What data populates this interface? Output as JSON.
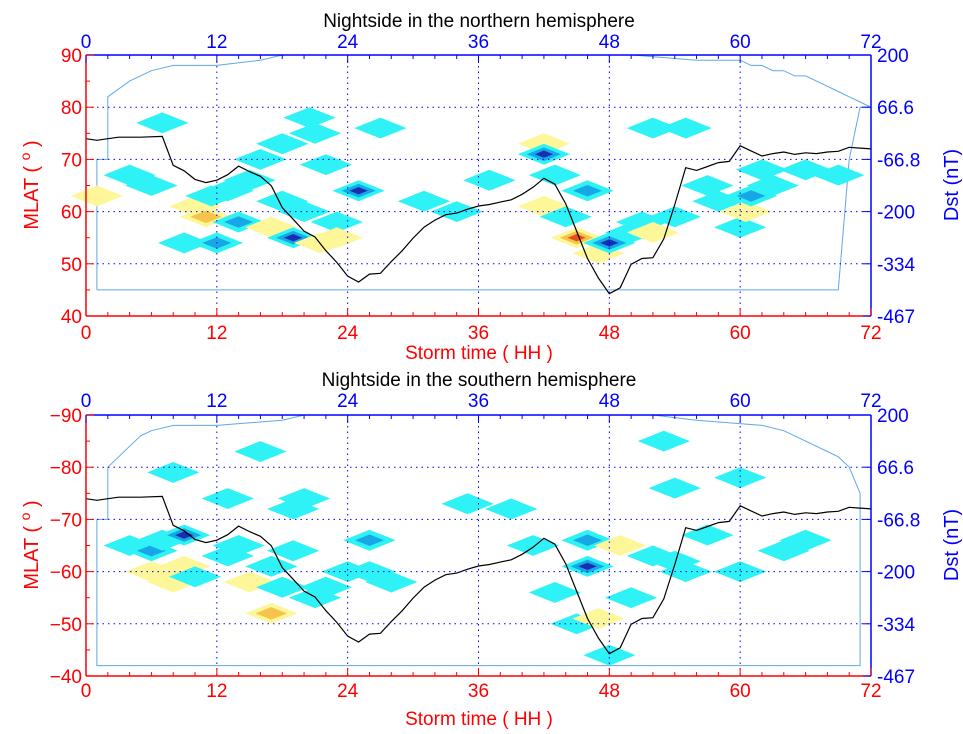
{
  "colors": {
    "left_axis": "#ff0000",
    "right_axis": "#0000ff",
    "top_axis": "#0000ff",
    "frame": "#0000ff",
    "grid": "#0000ff",
    "dst_line": "#000000",
    "boundary": "#5fa8e8",
    "contour_pos_light": "#fdf79a",
    "contour_pos_mid": "#f6c44a",
    "contour_pos_strong": "#e8501a",
    "contour_neg_light": "#2ef2f5",
    "contour_neg_mid": "#17a6e6",
    "contour_neg_strong": "#1630b0"
  },
  "chart_data": [
    {
      "type": "heatmap",
      "title": "Nightside in the northern hemisphere",
      "xlabel": "Storm time ( HH )",
      "ylabel": "MLAT ( o )",
      "y2label": "Dst (nT)",
      "xlim": [
        0,
        72
      ],
      "ylim": [
        40,
        90
      ],
      "y2lim": [
        -467,
        200
      ],
      "xticks": [
        "0",
        "12",
        "24",
        "36",
        "48",
        "60",
        "72"
      ],
      "top_xticks": [
        "0",
        "12",
        "24",
        "36",
        "48",
        "60",
        "72"
      ],
      "yticks": [
        "40",
        "50",
        "60",
        "70",
        "80",
        "90"
      ],
      "y2ticks": [
        "-467",
        "-334",
        "-200",
        "-66.8",
        "66.6",
        "200"
      ],
      "grid": true,
      "dst_series": {
        "name": "Dst",
        "x": [
          0,
          1,
          2,
          3,
          5,
          7,
          8,
          9,
          10,
          11,
          12,
          13,
          14,
          15,
          16,
          17,
          18,
          19,
          20,
          21,
          22,
          23,
          24,
          25,
          26,
          27,
          28,
          29,
          30,
          31,
          32,
          33,
          34,
          35,
          36,
          37,
          38,
          39,
          40,
          41,
          42,
          43,
          44,
          45,
          46,
          47,
          48,
          49,
          50,
          51,
          52,
          53,
          54,
          55,
          56,
          57,
          58,
          59,
          60,
          61,
          62,
          63,
          64,
          65,
          66,
          67,
          68,
          69,
          70,
          71,
          72
        ],
        "y": [
          -14,
          -18,
          -14,
          -10,
          -10,
          -8,
          -82,
          -96,
          -118,
          -126,
          -120,
          -106,
          -84,
          -98,
          -110,
          -134,
          -190,
          -220,
          -250,
          -265,
          -300,
          -330,
          -365,
          -380,
          -360,
          -358,
          -328,
          -300,
          -268,
          -240,
          -222,
          -208,
          -204,
          -194,
          -186,
          -182,
          -176,
          -170,
          -156,
          -138,
          -115,
          -130,
          -180,
          -250,
          -320,
          -370,
          -410,
          -395,
          -335,
          -320,
          -318,
          -270,
          -182,
          -88,
          -95,
          -85,
          -75,
          -72,
          -32,
          -45,
          -58,
          -52,
          -48,
          -54,
          -50,
          -52,
          -48,
          -46,
          -36,
          -38,
          -40
        ]
      },
      "boundary": {
        "x": [
          1,
          1,
          2,
          2,
          4,
          6,
          8,
          12,
          16,
          18,
          50,
          56,
          60,
          61,
          62,
          63,
          64,
          65,
          66,
          67,
          68,
          69,
          70,
          71,
          72,
          71,
          70,
          69,
          1
        ],
        "y": [
          45,
          70,
          70,
          82,
          85,
          87,
          88,
          88,
          89,
          90,
          90,
          89,
          89,
          88,
          88,
          87,
          87,
          86,
          86,
          85,
          84,
          83,
          82,
          81,
          80,
          80,
          70,
          45,
          45
        ]
      },
      "cells": [
        {
          "x": 1,
          "y": 63,
          "v": 1
        },
        {
          "x": 4,
          "y": 67,
          "v": -1
        },
        {
          "x": 6,
          "y": 65,
          "v": -1
        },
        {
          "x": 7,
          "y": 77,
          "v": -1
        },
        {
          "x": 9,
          "y": 54,
          "v": -1
        },
        {
          "x": 10,
          "y": 61,
          "v": 1
        },
        {
          "x": 11,
          "y": 59,
          "v": 2
        },
        {
          "x": 11.5,
          "y": 63,
          "v": -1
        },
        {
          "x": 12,
          "y": 54,
          "v": -2
        },
        {
          "x": 13,
          "y": 64,
          "v": -1
        },
        {
          "x": 14,
          "y": 58,
          "v": -2
        },
        {
          "x": 15,
          "y": 66,
          "v": -1
        },
        {
          "x": 16,
          "y": 70,
          "v": -1
        },
        {
          "x": 17,
          "y": 57,
          "v": 1
        },
        {
          "x": 18,
          "y": 62,
          "v": -1
        },
        {
          "x": 18,
          "y": 73,
          "v": -1
        },
        {
          "x": 19,
          "y": 55,
          "v": -3
        },
        {
          "x": 20,
          "y": 60,
          "v": -1
        },
        {
          "x": 20.5,
          "y": 78,
          "v": -1
        },
        {
          "x": 21,
          "y": 75,
          "v": -1
        },
        {
          "x": 21.5,
          "y": 54,
          "v": 1
        },
        {
          "x": 22,
          "y": 69,
          "v": -1
        },
        {
          "x": 23,
          "y": 58,
          "v": -1
        },
        {
          "x": 23,
          "y": 55,
          "v": 1
        },
        {
          "x": 25,
          "y": 64,
          "v": -3
        },
        {
          "x": 27,
          "y": 76,
          "v": -1
        },
        {
          "x": 31,
          "y": 62,
          "v": -1
        },
        {
          "x": 34,
          "y": 60,
          "v": -1
        },
        {
          "x": 37,
          "y": 66,
          "v": -1
        },
        {
          "x": 42,
          "y": 73,
          "v": 1
        },
        {
          "x": 42,
          "y": 71,
          "v": -3
        },
        {
          "x": 42,
          "y": 61,
          "v": 1
        },
        {
          "x": 43,
          "y": 67,
          "v": -1
        },
        {
          "x": 44,
          "y": 59,
          "v": -1
        },
        {
          "x": 45,
          "y": 55,
          "v": 3
        },
        {
          "x": 46,
          "y": 64,
          "v": -2
        },
        {
          "x": 47,
          "y": 52,
          "v": 1
        },
        {
          "x": 48,
          "y": 54,
          "v": -3
        },
        {
          "x": 50,
          "y": 56,
          "v": -1
        },
        {
          "x": 51,
          "y": 58,
          "v": -1
        },
        {
          "x": 52,
          "y": 76,
          "v": -1
        },
        {
          "x": 52,
          "y": 56,
          "v": 1
        },
        {
          "x": 54,
          "y": 59,
          "v": -1
        },
        {
          "x": 55,
          "y": 76,
          "v": -1
        },
        {
          "x": 57,
          "y": 65,
          "v": -1
        },
        {
          "x": 58,
          "y": 62,
          "v": -1
        },
        {
          "x": 60,
          "y": 57,
          "v": -1
        },
        {
          "x": 60.5,
          "y": 60,
          "v": 1
        },
        {
          "x": 61,
          "y": 63,
          "v": -2
        },
        {
          "x": 62,
          "y": 68,
          "v": -1
        },
        {
          "x": 63,
          "y": 65,
          "v": -1
        },
        {
          "x": 66,
          "y": 68,
          "v": -1
        },
        {
          "x": 69,
          "y": 67,
          "v": -1
        }
      ]
    },
    {
      "type": "heatmap",
      "title": "Nightside in the southern hemisphere",
      "xlabel": "Storm time ( HH )",
      "ylabel": "MLAT ( o )",
      "y2label": "Dst (nT)",
      "xlim": [
        0,
        72
      ],
      "ylim": [
        -40,
        -90
      ],
      "y2lim": [
        -467,
        200
      ],
      "xticks": [
        "0",
        "12",
        "24",
        "36",
        "48",
        "60",
        "72"
      ],
      "top_xticks": [
        "0",
        "12",
        "24",
        "36",
        "48",
        "60",
        "72"
      ],
      "yticks": [
        "−40",
        "−50",
        "−60",
        "−70",
        "−80",
        "−90"
      ],
      "y2ticks": [
        "-467",
        "-334",
        "-200",
        "-66.8",
        "66.6",
        "200"
      ],
      "grid": true,
      "dst_series": {
        "name": "Dst",
        "x": [
          0,
          1,
          2,
          3,
          5,
          7,
          8,
          9,
          10,
          11,
          12,
          13,
          14,
          15,
          16,
          17,
          18,
          19,
          20,
          21,
          22,
          23,
          24,
          25,
          26,
          27,
          28,
          29,
          30,
          31,
          32,
          33,
          34,
          35,
          36,
          37,
          38,
          39,
          40,
          41,
          42,
          43,
          44,
          45,
          46,
          47,
          48,
          49,
          50,
          51,
          52,
          53,
          54,
          55,
          56,
          57,
          58,
          59,
          60,
          61,
          62,
          63,
          64,
          65,
          66,
          67,
          68,
          69,
          70,
          71,
          72
        ],
        "y": [
          -14,
          -18,
          -14,
          -10,
          -10,
          -8,
          -82,
          -96,
          -118,
          -126,
          -120,
          -106,
          -84,
          -98,
          -110,
          -134,
          -190,
          -220,
          -250,
          -265,
          -300,
          -330,
          -365,
          -380,
          -360,
          -358,
          -328,
          -300,
          -268,
          -240,
          -222,
          -208,
          -204,
          -194,
          -186,
          -182,
          -176,
          -170,
          -156,
          -138,
          -115,
          -130,
          -180,
          -250,
          -320,
          -370,
          -410,
          -395,
          -335,
          -320,
          -318,
          -270,
          -182,
          -88,
          -95,
          -85,
          -75,
          -72,
          -32,
          -45,
          -58,
          -52,
          -48,
          -54,
          -50,
          -52,
          -48,
          -46,
          -36,
          -38,
          -40
        ]
      },
      "boundary": {
        "x": [
          1,
          2,
          2,
          3,
          4,
          5,
          6,
          8,
          12,
          18,
          20,
          52,
          56,
          62,
          64,
          65,
          66,
          67,
          68,
          69,
          70,
          71,
          71,
          70,
          1,
          1
        ],
        "y": [
          -70,
          -70,
          -80,
          -82,
          -84,
          -86,
          -87,
          -88,
          -88,
          -89,
          -90,
          -90,
          -89,
          -88,
          -87,
          -86,
          -85,
          -84,
          -83,
          -82,
          -80,
          -75,
          -42,
          -42,
          -42,
          -70
        ]
      },
      "cells": [
        {
          "x": 4,
          "y": -65,
          "v": -1
        },
        {
          "x": 6,
          "y": -64,
          "v": -2
        },
        {
          "x": 6,
          "y": -60,
          "v": 1
        },
        {
          "x": 7,
          "y": -66,
          "v": -1
        },
        {
          "x": 8,
          "y": -79,
          "v": -1
        },
        {
          "x": 8,
          "y": -58,
          "v": 1
        },
        {
          "x": 9,
          "y": -67,
          "v": -3
        },
        {
          "x": 9,
          "y": -61,
          "v": 1
        },
        {
          "x": 10,
          "y": -59,
          "v": -1
        },
        {
          "x": 13,
          "y": -74,
          "v": -1
        },
        {
          "x": 13,
          "y": -63,
          "v": -1
        },
        {
          "x": 14,
          "y": -65,
          "v": -1
        },
        {
          "x": 15,
          "y": -58,
          "v": 1
        },
        {
          "x": 16,
          "y": -83,
          "v": -1
        },
        {
          "x": 17,
          "y": -61,
          "v": -1
        },
        {
          "x": 17,
          "y": -52,
          "v": 2
        },
        {
          "x": 18,
          "y": -57,
          "v": -1
        },
        {
          "x": 19,
          "y": -64,
          "v": -1
        },
        {
          "x": 19,
          "y": -72,
          "v": -1
        },
        {
          "x": 20,
          "y": -74,
          "v": -1
        },
        {
          "x": 21,
          "y": -55,
          "v": -1
        },
        {
          "x": 22,
          "y": -57,
          "v": -1
        },
        {
          "x": 24,
          "y": -60,
          "v": -1
        },
        {
          "x": 26,
          "y": -66,
          "v": -2
        },
        {
          "x": 26,
          "y": -60,
          "v": -1
        },
        {
          "x": 28,
          "y": -58,
          "v": -1
        },
        {
          "x": 35,
          "y": -73,
          "v": -1
        },
        {
          "x": 39,
          "y": -72,
          "v": -1
        },
        {
          "x": 41,
          "y": -65,
          "v": -1
        },
        {
          "x": 43,
          "y": -56,
          "v": -1
        },
        {
          "x": 45,
          "y": -50,
          "v": -1
        },
        {
          "x": 46,
          "y": -66,
          "v": -2
        },
        {
          "x": 46,
          "y": -61,
          "v": -3
        },
        {
          "x": 47,
          "y": -51,
          "v": 1
        },
        {
          "x": 48,
          "y": -44,
          "v": -1
        },
        {
          "x": 49,
          "y": -65,
          "v": 1
        },
        {
          "x": 50,
          "y": -55,
          "v": -1
        },
        {
          "x": 52,
          "y": -63,
          "v": -1
        },
        {
          "x": 53,
          "y": -85,
          "v": -1
        },
        {
          "x": 54,
          "y": -76,
          "v": -1
        },
        {
          "x": 54,
          "y": -62,
          "v": -1
        },
        {
          "x": 55,
          "y": -60,
          "v": -1
        },
        {
          "x": 57,
          "y": -67,
          "v": -1
        },
        {
          "x": 60,
          "y": -78,
          "v": -1
        },
        {
          "x": 60,
          "y": -60,
          "v": -1
        },
        {
          "x": 64,
          "y": -64,
          "v": -1
        },
        {
          "x": 66,
          "y": -66,
          "v": -1
        }
      ]
    }
  ]
}
